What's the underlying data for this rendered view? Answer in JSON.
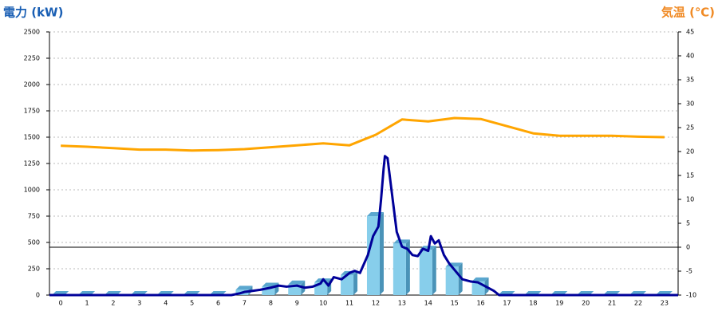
{
  "chart_data": {
    "type": "bar",
    "title_left": "電力 (kW)",
    "title_right": "気温 (℃)",
    "categories": [
      "0",
      "1",
      "2",
      "3",
      "4",
      "5",
      "6",
      "7",
      "8",
      "9",
      "10",
      "11",
      "12",
      "13",
      "14",
      "15",
      "16",
      "17",
      "18",
      "19",
      "20",
      "21",
      "22",
      "23"
    ],
    "xlim": [
      -0.43,
      23.52
    ],
    "ylim": [
      0,
      2500
    ],
    "yticks": [
      0,
      250,
      500,
      750,
      1000,
      1250,
      1500,
      1750,
      2000,
      2250,
      2500
    ],
    "y2lim": [
      -10,
      45
    ],
    "y2ticks": [
      -10,
      -5,
      0,
      5,
      10,
      15,
      20,
      25,
      30,
      35,
      40,
      45
    ],
    "grid": true,
    "series": [
      {
        "type": "bar",
        "color": "#87ceeb",
        "values": [
          0,
          0,
          0,
          0,
          0,
          0,
          0,
          50,
          80,
          100,
          120,
          190,
          750,
          490,
          430,
          270,
          130,
          0,
          0,
          0,
          0,
          0,
          0,
          0
        ]
      },
      {
        "type": "line",
        "color": "#000099",
        "x": [
          -0.43,
          6.5,
          6.8,
          7,
          7.3,
          7.6,
          8,
          8.3,
          8.6,
          9,
          9.3,
          9.6,
          9.9,
          10,
          10.2,
          10.4,
          10.7,
          11,
          11.2,
          11.4,
          11.7,
          11.9,
          12.1,
          12.2,
          12.3,
          12.35,
          12.45,
          12.6,
          12.8,
          13,
          13.2,
          13.4,
          13.6,
          13.8,
          14,
          14.1,
          14.25,
          14.4,
          14.6,
          14.8,
          15,
          15.3,
          15.6,
          15.9,
          16.2,
          16.5,
          16.7,
          23.52
        ],
        "values": [
          0,
          0,
          15,
          30,
          40,
          50,
          70,
          90,
          80,
          90,
          70,
          80,
          110,
          150,
          90,
          170,
          150,
          210,
          230,
          210,
          380,
          560,
          650,
          900,
          1200,
          1320,
          1300,
          1000,
          600,
          460,
          440,
          380,
          370,
          440,
          420,
          560,
          490,
          520,
          380,
          300,
          240,
          150,
          130,
          120,
          80,
          40,
          0,
          0
        ]
      },
      {
        "type": "line",
        "axis": "y2",
        "color": "#ffa500",
        "values": [
          21.2,
          21,
          20.7,
          20.4,
          20.4,
          20.2,
          20.3,
          20.5,
          20.9,
          21.3,
          21.7,
          21.3,
          23.5,
          26.7,
          26.3,
          27,
          26.8,
          25.3,
          23.8,
          23.3,
          23.3,
          23.3,
          23.1,
          23
        ]
      }
    ]
  }
}
